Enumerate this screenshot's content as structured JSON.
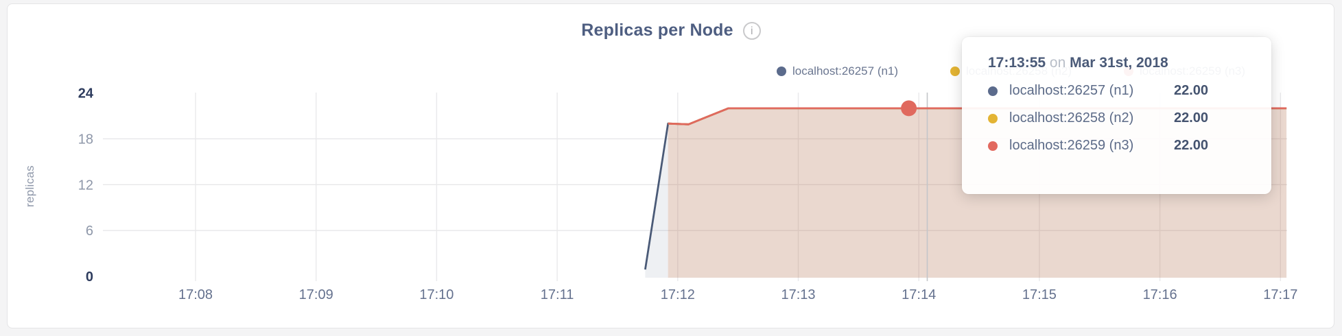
{
  "header": {
    "title": "Replicas per Node",
    "info_icon_glyph": "i"
  },
  "legend": {
    "items": [
      {
        "label": "localhost:26257 (n1)",
        "color": "#5b6b8c"
      },
      {
        "label": "localhost:26258 (n2)",
        "color": "#e3b434"
      },
      {
        "label": "localhost:26259 (n3)",
        "color": "#e2695f"
      }
    ]
  },
  "tooltip": {
    "time": "17:13:55",
    "preposition": "on",
    "date": "Mar 31st, 2018",
    "rows": [
      {
        "label": "localhost:26257 (n1)",
        "value": "22.00",
        "color": "#5b6b8c"
      },
      {
        "label": "localhost:26258 (n2)",
        "value": "22.00",
        "color": "#e3b434"
      },
      {
        "label": "localhost:26259 (n3)",
        "value": "22.00",
        "color": "#e2695f"
      }
    ]
  },
  "chart_data": {
    "type": "area",
    "title": "Replicas per Node",
    "ylabel": "replicas",
    "ylim": [
      0,
      24
    ],
    "y_ticks": [
      0,
      6,
      12,
      18,
      24
    ],
    "x_ticks": [
      {
        "m": 8,
        "label": "17:08"
      },
      {
        "m": 9,
        "label": "17:09"
      },
      {
        "m": 10,
        "label": "17:10"
      },
      {
        "m": 11,
        "label": "17:11"
      },
      {
        "m": 12,
        "label": "17:12"
      },
      {
        "m": 13,
        "label": "17:13"
      },
      {
        "m": 14,
        "label": "17:14"
      },
      {
        "m": 15,
        "label": "17:15"
      },
      {
        "m": 16,
        "label": "17:16"
      },
      {
        "m": 17,
        "label": "17:17"
      }
    ],
    "x_axis_note": "minutes after 17:00 on Mar 31st, 2018",
    "series": [
      {
        "name": "localhost:26257 (n1)",
        "color": "#4a5a77",
        "fill": "rgba(84,103,141,0.10)",
        "points": [
          [
            11.73,
            0.9
          ],
          [
            11.92,
            20.0
          ],
          [
            12.09,
            19.9
          ],
          [
            12.42,
            22.0
          ],
          [
            17.05,
            22.0
          ]
        ]
      },
      {
        "name": "localhost:26258 (n2)",
        "color": "#e3b434",
        "fill": "rgba(227,180,52,0.09)",
        "points": [
          [
            11.92,
            20.0
          ],
          [
            12.09,
            19.9
          ],
          [
            12.42,
            22.0
          ],
          [
            17.05,
            22.0
          ]
        ]
      },
      {
        "name": "localhost:26259 (n3)",
        "color": "#e0695e",
        "fill": "rgba(226,105,94,0.14)",
        "points": [
          [
            11.92,
            20.0
          ],
          [
            12.09,
            19.9
          ],
          [
            12.42,
            22.0
          ],
          [
            17.05,
            22.0
          ]
        ]
      }
    ],
    "hover": {
      "time_label": "17:13:55",
      "point": {
        "x_min": 13.917,
        "value": 22
      },
      "crosshair_x_min": 14.07
    },
    "legend_position": "top-right",
    "grid": true
  }
}
